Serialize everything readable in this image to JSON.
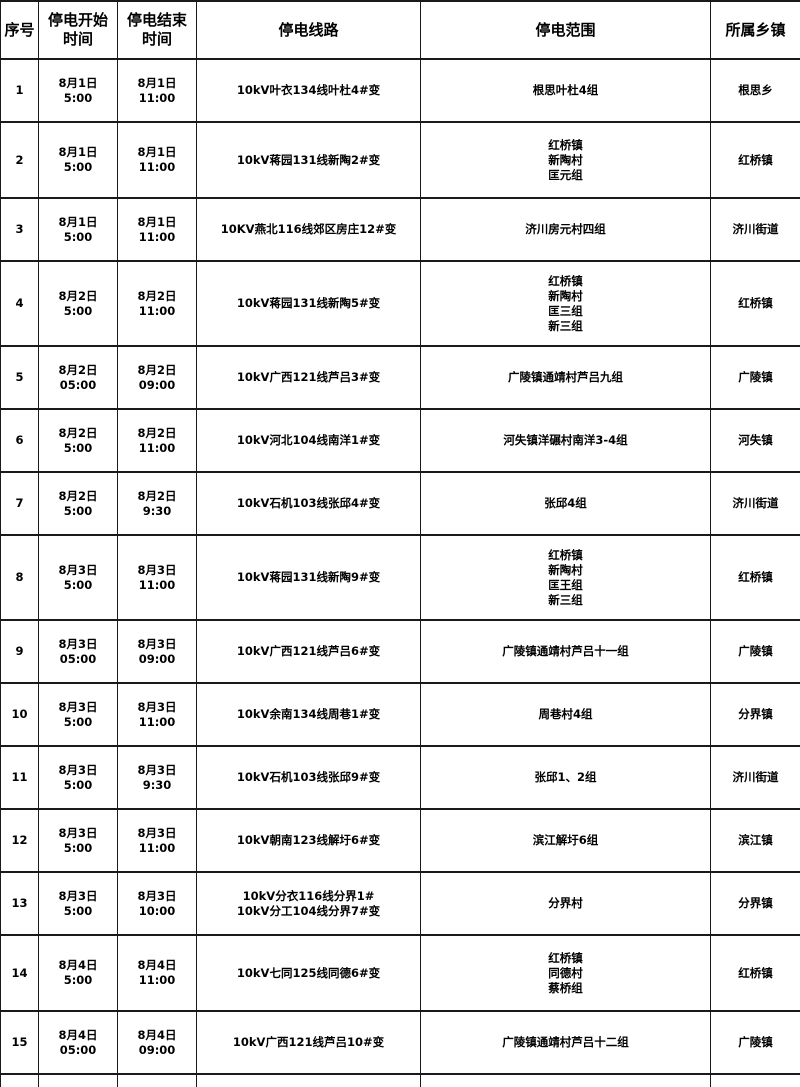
{
  "table": {
    "columns": [
      "序号",
      "停电开始时间",
      "停电结束时间",
      "停电线路",
      "停电范围",
      "所属乡镇"
    ],
    "col_names": [
      "cell-index",
      "cell-start-time",
      "cell-end-time",
      "cell-line",
      "cell-range",
      "cell-township"
    ],
    "rows": [
      {
        "cells": [
          "1",
          "8月1日\n5:00",
          "8月1日\n11:00",
          "10kV叶衣134线叶杜4#变",
          "根思叶杜4组",
          "根思乡"
        ]
      },
      {
        "cells": [
          "2",
          "8月1日\n5:00",
          "8月1日\n11:00",
          "10kV蒋园131线新陶2#变",
          "红桥镇\n新陶村\n匡元组",
          "红桥镇"
        ]
      },
      {
        "cells": [
          "3",
          "8月1日\n5:00",
          "8月1日\n11:00",
          "10KV燕北116线郊区房庄12#变",
          "济川房元村四组",
          "济川街道"
        ]
      },
      {
        "cells": [
          "4",
          "8月2日\n5:00",
          "8月2日\n11:00",
          "10kV蒋园131线新陶5#变",
          "红桥镇\n新陶村\n匡三组\n新三组",
          "红桥镇"
        ]
      },
      {
        "cells": [
          "5",
          "8月2日\n05:00",
          "8月2日\n09:00",
          "10kV广西121线芦吕3#变",
          "广陵镇通靖村芦吕九组",
          "广陵镇"
        ]
      },
      {
        "cells": [
          "6",
          "8月2日\n5:00",
          "8月2日\n11:00",
          "10kV河北104线南洋1#变",
          "河失镇洋碾村南洋3-4组",
          "河失镇"
        ]
      },
      {
        "cells": [
          "7",
          "8月2日\n5:00",
          "8月2日\n9:30",
          "10kV石机103线张邱4#变",
          "张邱4组",
          "济川街道"
        ]
      },
      {
        "cells": [
          "8",
          "8月3日\n5:00",
          "8月3日\n11:00",
          "10kV蒋园131线新陶9#变",
          "红桥镇\n新陶村\n匡王组\n新三组",
          "红桥镇"
        ]
      },
      {
        "cells": [
          "9",
          "8月3日\n05:00",
          "8月3日\n09:00",
          "10kV广西121线芦吕6#变",
          "广陵镇通靖村芦吕十一组",
          "广陵镇"
        ]
      },
      {
        "cells": [
          "10",
          "8月3日\n5:00",
          "8月3日\n11:00",
          "10kV余南134线周巷1#变",
          "周巷村4组",
          "分界镇"
        ]
      },
      {
        "cells": [
          "11",
          "8月3日\n5:00",
          "8月3日\n9:30",
          "10kV石机103线张邱9#变",
          "张邱1、2组",
          "济川街道"
        ]
      },
      {
        "cells": [
          "12",
          "8月3日\n5:00",
          "8月3日\n11:00",
          "10kV朝南123线解圩6#变",
          "滨江解圩6组",
          "滨江镇"
        ]
      },
      {
        "cells": [
          "13",
          "8月3日\n5:00",
          "8月3日\n10:00",
          "10kV分衣116线分界1#\n10kV分工104线分界7#变",
          "分界村",
          "分界镇"
        ]
      },
      {
        "cells": [
          "14",
          "8月4日\n5:00",
          "8月4日\n11:00",
          "10kV七同125线同德6#变",
          "红桥镇\n同德村\n蔡桥组",
          "红桥镇"
        ]
      },
      {
        "cells": [
          "15",
          "8月4日\n05:00",
          "8月4日\n09:00",
          "10kV广西121线芦吕10#变",
          "广陵镇通靖村芦吕十二组",
          "广陵镇"
        ]
      }
    ]
  }
}
